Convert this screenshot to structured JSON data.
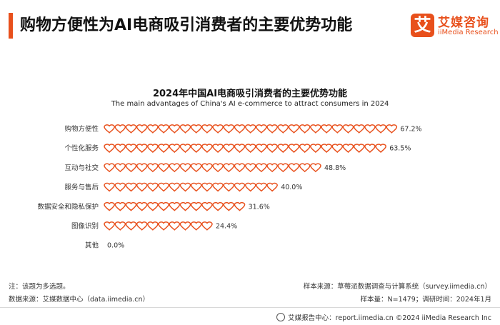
{
  "header": {
    "title": "购物方便性为AI电商吸引消费者的主要优势功能",
    "logo_mark": "艾",
    "logo_cn": "艾媒咨询",
    "logo_en": "iiMedia Research"
  },
  "chart_data": {
    "type": "bar",
    "title": "2024年中国AI电商吸引消费者的主要优势功能",
    "subtitle": "The main advantages of China's AI e-commerce to attract consumers in 2024",
    "categories": [
      "购物方便性",
      "个性化服务",
      "互动与社交",
      "服务与售后",
      "数据安全和隐私保护",
      "图像识别",
      "其他"
    ],
    "values": [
      67.2,
      63.5,
      48.8,
      40.0,
      31.6,
      24.4,
      0.0
    ],
    "value_labels": [
      "67.2%",
      "63.5%",
      "48.8%",
      "40.0%",
      "31.6%",
      "24.4%",
      "0.0%"
    ],
    "unit": "%",
    "mark": "heart-icon",
    "mark_color": "#e8501c",
    "orientation": "horizontal"
  },
  "notes": {
    "note": "注：该题为多选题。",
    "source": "数据来源：艾媒数据中心（data.iimedia.cn）",
    "sample_source": "样本来源：草莓派数据调查与计算系统（survey.iimedia.cn）",
    "sample_info": "样本量：N=1479；调研时间：2024年1月"
  },
  "footer": {
    "text": "艾媒报告中心：report.iimedia.cn  ©2024  iiMedia Research  Inc"
  }
}
